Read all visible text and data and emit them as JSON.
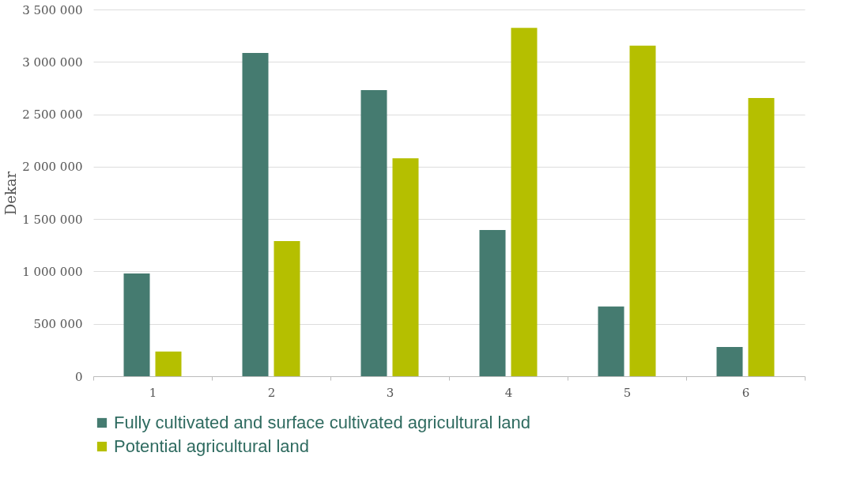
{
  "chart_data": {
    "type": "bar",
    "ylabel": "Dekar",
    "categories": [
      "1",
      "2",
      "3",
      "4",
      "5",
      "6"
    ],
    "series": [
      {
        "name": "Fully cultivated and surface cultivated agricultural land",
        "color": "#457b70",
        "values": [
          980000,
          3085000,
          2730000,
          1395000,
          665000,
          280000
        ]
      },
      {
        "name": "Potential agricultural land",
        "color": "#b5bf00",
        "values": [
          235000,
          1290000,
          2080000,
          3325000,
          3155000,
          2655000
        ]
      }
    ],
    "ylim": [
      0,
      3500000
    ],
    "yticks": [
      0,
      {
        "value": 500000,
        "label": "500 000"
      },
      {
        "value": 1000000,
        "label": "1 000 000"
      },
      {
        "value": 1500000,
        "label": "1 500 000"
      },
      {
        "value": 2000000,
        "label": "2 000 000"
      },
      {
        "value": 2500000,
        "label": "2 500 000"
      },
      {
        "value": 3000000,
        "label": "3 000 000"
      },
      {
        "value": 3500000,
        "label": "3 500 000"
      }
    ],
    "grid": "y",
    "legend": "bottom"
  }
}
